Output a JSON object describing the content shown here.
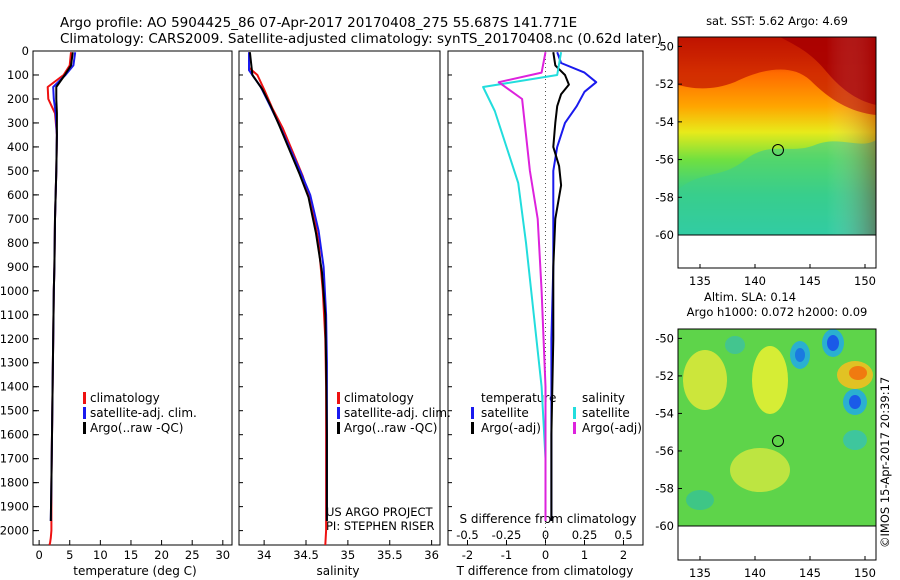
{
  "header": {
    "title_line1": "Argo profile: AO 5904425_86 07-Apr-2017 20170408_275 55.687S 141.771E",
    "title_line2": "Climatology: CARS2009. Satellite-adjusted climatology: synTS_20170408.nc (0.62d later)"
  },
  "colors": {
    "climatology": "#ee1111",
    "satellite": "#1a1aee",
    "argo": "#000000",
    "satellite_salinity_diff": "#22dddd",
    "argo_salinity_diff": "#dd22dd"
  },
  "chart_data": [
    {
      "id": "temperature",
      "type": "line",
      "xlabel": "temperature (deg C)",
      "ylabel": "",
      "xlim": [
        -1,
        31.5
      ],
      "ylim": [
        2060,
        0
      ],
      "xticks": [
        0,
        5,
        10,
        15,
        20,
        25,
        30
      ],
      "yticks": [
        0,
        100,
        200,
        300,
        400,
        500,
        600,
        700,
        800,
        900,
        1000,
        1100,
        1200,
        1300,
        1400,
        1500,
        1600,
        1700,
        1800,
        1900,
        2000
      ],
      "legend": [
        "climatology",
        "satellite-adj. clim.",
        "Argo(..raw -QC)"
      ],
      "series": [
        {
          "name": "climatology",
          "color": "#ee1111",
          "x": [
            5.2,
            5.0,
            4.0,
            1.4,
            1.5,
            2.6,
            2.9,
            2.8,
            2.6,
            2.5,
            2.4,
            2.3,
            2.2,
            2.1,
            2.0,
            2.0,
            2.0,
            1.9,
            1.8,
            1.7
          ],
          "y": [
            5,
            60,
            100,
            150,
            200,
            260,
            350,
            500,
            700,
            900,
            1000,
            1200,
            1400,
            1600,
            1800,
            1900,
            2000,
            2030,
            2050,
            2060
          ]
        },
        {
          "name": "satellite-adj. clim.",
          "color": "#1a1aee",
          "x": [
            5.9,
            5.6,
            4.3,
            2.3,
            2.4,
            2.7,
            2.9,
            2.8,
            2.6,
            2.5,
            2.4,
            2.3,
            2.2,
            2.1,
            2.0,
            1.9
          ],
          "y": [
            5,
            60,
            100,
            150,
            200,
            260,
            350,
            500,
            700,
            900,
            1000,
            1200,
            1400,
            1600,
            1800,
            1960
          ]
        },
        {
          "name": "Argo(..raw -QC)",
          "color": "#000000",
          "x": [
            5.5,
            5.2,
            4.2,
            2.8,
            2.8,
            2.9,
            2.9,
            2.8,
            2.6,
            2.5,
            2.4,
            2.3,
            2.2,
            2.1,
            2.0,
            1.9
          ],
          "y": [
            5,
            60,
            100,
            150,
            200,
            260,
            350,
            500,
            700,
            900,
            1000,
            1200,
            1400,
            1600,
            1800,
            1960
          ]
        }
      ]
    },
    {
      "id": "salinity",
      "type": "line",
      "xlabel": "salinity",
      "xlim": [
        33.7,
        36.1
      ],
      "ylim": [
        2060,
        0
      ],
      "xticks": [
        34,
        34.5,
        35,
        35.5,
        36
      ],
      "xticklabels": [
        "34",
        "34.5",
        "35",
        "35.5",
        "36"
      ],
      "legend": [
        "climatology",
        "satellite-adj. clim.",
        "Argo(..raw -QC)"
      ],
      "annotation": [
        "US ARGO PROJECT",
        "PI: STEPHEN RISER"
      ],
      "series": [
        {
          "name": "climatology",
          "color": "#ee1111",
          "x": [
            33.82,
            33.82,
            33.92,
            34.0,
            34.1,
            34.22,
            34.34,
            34.46,
            34.57,
            34.65,
            34.7,
            34.73,
            34.74,
            34.74,
            34.74,
            34.74,
            34.73
          ],
          "y": [
            5,
            70,
            100,
            160,
            240,
            320,
            420,
            520,
            640,
            800,
            1000,
            1200,
            1400,
            1600,
            1800,
            2000,
            2060
          ]
        },
        {
          "name": "satellite-adj. clim.",
          "color": "#1a1aee",
          "x": [
            33.82,
            33.82,
            33.96,
            34.06,
            34.17,
            34.3,
            34.43,
            34.55,
            34.65,
            34.71,
            34.74,
            34.75,
            34.75,
            34.75,
            34.75
          ],
          "y": [
            5,
            80,
            150,
            220,
            300,
            400,
            500,
            600,
            750,
            900,
            1100,
            1300,
            1500,
            1800,
            1960
          ]
        },
        {
          "name": "Argo(..raw -QC)",
          "color": "#000000",
          "x": [
            33.83,
            33.86,
            33.98,
            34.08,
            34.18,
            34.3,
            34.42,
            34.53,
            34.62,
            34.69,
            34.73,
            34.74,
            34.75,
            34.75
          ],
          "y": [
            5,
            100,
            160,
            230,
            310,
            410,
            510,
            610,
            760,
            920,
            1100,
            1300,
            1600,
            1960
          ]
        }
      ]
    },
    {
      "id": "difference",
      "type": "line",
      "xlabel": "T difference from climatology",
      "xlabel2": "S difference from climatology",
      "xlim": [
        -2.5,
        2.5
      ],
      "ylim": [
        2060,
        0
      ],
      "xticks": [
        -2,
        -1,
        0,
        1,
        2
      ],
      "xticks_S": [
        -0.5,
        -0.25,
        0,
        0.25,
        0.5
      ],
      "xticklabels_S": [
        "-0.5",
        "-0.25",
        "0",
        "0.25",
        "0.5"
      ],
      "legend_groups": [
        {
          "title": "temperature",
          "items": [
            "satellite",
            "Argo(-adj)"
          ]
        },
        {
          "title": "salinity",
          "items": [
            "satellite",
            "Argo(-adj)"
          ]
        }
      ],
      "series": [
        {
          "name": "temperature satellite",
          "color": "#1a1aee",
          "x": [
            0.3,
            0.4,
            1.0,
            1.3,
            1.0,
            0.8,
            0.5,
            0.3,
            0.2,
            0.2,
            0.2,
            0.15,
            0.15,
            0.15,
            0.15
          ],
          "y": [
            5,
            50,
            90,
            130,
            170,
            230,
            300,
            400,
            500,
            700,
            900,
            1200,
            1500,
            1800,
            1960
          ]
        },
        {
          "name": "temperature Argo(-adj)",
          "color": "#000000",
          "x": [
            0.2,
            0.25,
            0.5,
            0.6,
            0.4,
            0.3,
            0.25,
            0.2,
            0.35,
            0.4,
            0.25,
            0.2,
            0.2,
            0.15,
            0.15
          ],
          "y": [
            5,
            60,
            100,
            140,
            180,
            230,
            300,
            400,
            480,
            560,
            700,
            900,
            1200,
            1600,
            1960
          ]
        },
        {
          "name": "salinity satellite",
          "color": "#22dddd",
          "x": [
            0.2,
            0.15,
            -0.8,
            -0.65,
            -0.5,
            -0.35,
            -0.25,
            -0.15,
            -0.05,
            0.0,
            0.0
          ],
          "y": [
            5,
            100,
            150,
            250,
            400,
            550,
            800,
            1100,
            1400,
            1700,
            1960
          ]
        },
        {
          "name": "salinity Argo(-adj)",
          "color": "#dd22dd",
          "x": [
            0.0,
            -0.05,
            -0.6,
            -0.3,
            -0.25,
            -0.2,
            -0.1,
            -0.05,
            0.0,
            0.0
          ],
          "y": [
            5,
            90,
            130,
            200,
            350,
            500,
            700,
            1000,
            1400,
            1960
          ]
        }
      ]
    },
    {
      "id": "sst-map",
      "type": "heatmap",
      "title": "sat. SST: 5.62 Argo: 4.69",
      "xlim": [
        133,
        151
      ],
      "ylim": [
        -60.5,
        -49.5
      ],
      "xticks": [
        135,
        140,
        145,
        150
      ],
      "yticks": [
        -50,
        -52,
        -54,
        -56,
        -58,
        -60
      ],
      "marker": {
        "lon": 141.771,
        "lat": -55.687
      }
    },
    {
      "id": "sla-map",
      "type": "heatmap",
      "title": "Altim. SLA: 0.14",
      "subtitle": "Argo h1000: 0.072 h2000: 0.09",
      "xlim": [
        133,
        151
      ],
      "ylim": [
        -60.5,
        -49.5
      ],
      "xticks": [
        135,
        140,
        145,
        150
      ],
      "yticks": [
        -50,
        -52,
        -54,
        -56,
        -58,
        -60
      ],
      "marker": {
        "lon": 141.771,
        "lat": -55.687
      }
    }
  ],
  "credit": "©IMOS 15-Apr-2017 20:39:17"
}
